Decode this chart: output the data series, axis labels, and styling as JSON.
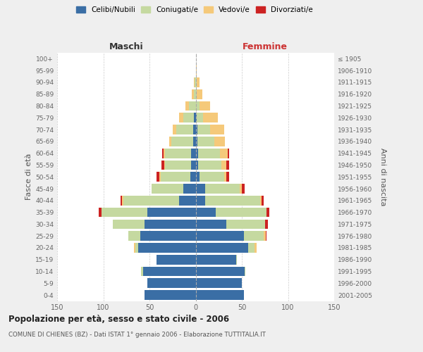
{
  "age_groups": [
    "0-4",
    "5-9",
    "10-14",
    "15-19",
    "20-24",
    "25-29",
    "30-34",
    "35-39",
    "40-44",
    "45-49",
    "50-54",
    "55-59",
    "60-64",
    "65-69",
    "70-74",
    "75-79",
    "80-84",
    "85-89",
    "90-94",
    "95-99",
    "100+"
  ],
  "birth_years": [
    "2001-2005",
    "1996-2000",
    "1991-1995",
    "1986-1990",
    "1981-1985",
    "1976-1980",
    "1971-1975",
    "1966-1970",
    "1961-1965",
    "1956-1960",
    "1951-1955",
    "1946-1950",
    "1941-1945",
    "1936-1940",
    "1931-1935",
    "1926-1930",
    "1921-1925",
    "1916-1920",
    "1911-1915",
    "1906-1910",
    "≤ 1905"
  ],
  "male": {
    "celibi": [
      55,
      52,
      57,
      42,
      62,
      60,
      55,
      52,
      18,
      13,
      6,
      5,
      5,
      3,
      3,
      2,
      0,
      0,
      0,
      0,
      0
    ],
    "coniugati": [
      0,
      0,
      2,
      0,
      3,
      13,
      35,
      50,
      60,
      35,
      32,
      28,
      28,
      23,
      18,
      11,
      7,
      2,
      1,
      0,
      0
    ],
    "vedovi": [
      0,
      0,
      0,
      0,
      2,
      0,
      0,
      0,
      2,
      0,
      1,
      1,
      2,
      3,
      4,
      5,
      4,
      2,
      1,
      0,
      0
    ],
    "divorziati": [
      0,
      0,
      0,
      0,
      0,
      0,
      0,
      3,
      1,
      0,
      3,
      3,
      1,
      0,
      0,
      0,
      0,
      0,
      0,
      0,
      0
    ]
  },
  "female": {
    "nubili": [
      52,
      50,
      53,
      44,
      57,
      52,
      33,
      22,
      10,
      10,
      4,
      3,
      3,
      2,
      2,
      1,
      0,
      0,
      0,
      0,
      0
    ],
    "coniugate": [
      0,
      0,
      1,
      1,
      7,
      22,
      42,
      55,
      60,
      38,
      27,
      25,
      23,
      18,
      14,
      7,
      4,
      1,
      1,
      0,
      0
    ],
    "vedove": [
      0,
      0,
      0,
      0,
      2,
      2,
      0,
      0,
      1,
      2,
      2,
      5,
      9,
      12,
      15,
      16,
      12,
      6,
      3,
      1,
      0
    ],
    "divorziate": [
      0,
      0,
      0,
      0,
      0,
      1,
      3,
      3,
      3,
      3,
      3,
      3,
      1,
      0,
      0,
      0,
      0,
      0,
      0,
      0,
      0
    ]
  },
  "colors": {
    "celibi": "#3A6EA5",
    "coniugati": "#C5D9A0",
    "vedovi": "#F5C97A",
    "divorziati": "#CC2222"
  },
  "xlim": 150,
  "title": "Popolazione per età, sesso e stato civile - 2006",
  "subtitle": "COMUNE DI CHIENES (BZ) - Dati ISTAT 1° gennaio 2006 - Elaborazione TUTTITALIA.IT",
  "xlabel_left": "Maschi",
  "xlabel_right": "Femmine",
  "ylabel_left": "Fasce di età",
  "ylabel_right": "Anni di nascita",
  "bg_color": "#efefef",
  "plot_bg": "#ffffff",
  "grid_color": "#cccccc"
}
